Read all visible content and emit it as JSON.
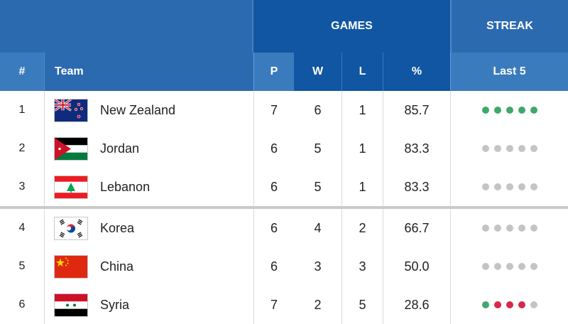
{
  "header": {
    "games": "GAMES",
    "streak": "STREAK",
    "rank": "#",
    "team": "Team",
    "p": "P",
    "w": "W",
    "l": "L",
    "pct": "%",
    "last5": "Last 5"
  },
  "colors": {
    "win": "#3fa86a",
    "loss": "#d8284a",
    "none": "#c4c4c4",
    "header_dark": "#1056a2",
    "header_light": "#3a7bbd"
  },
  "rows": [
    {
      "rank": "1",
      "team": "New Zealand",
      "flag": "new-zealand-flag",
      "p": "7",
      "w": "6",
      "l": "1",
      "pct": "85.7",
      "last5": [
        "W",
        "W",
        "W",
        "W",
        "W"
      ]
    },
    {
      "rank": "2",
      "team": "Jordan",
      "flag": "jordan-flag",
      "p": "6",
      "w": "5",
      "l": "1",
      "pct": "83.3",
      "last5": [
        "-",
        "-",
        "-",
        "-",
        "-"
      ]
    },
    {
      "rank": "3",
      "team": "Lebanon",
      "flag": "lebanon-flag",
      "p": "6",
      "w": "5",
      "l": "1",
      "pct": "83.3",
      "last5": [
        "-",
        "-",
        "-",
        "-",
        "-"
      ]
    },
    {
      "rank": "4",
      "team": "Korea",
      "flag": "korea-flag",
      "p": "6",
      "w": "4",
      "l": "2",
      "pct": "66.7",
      "last5": [
        "-",
        "-",
        "-",
        "-",
        "-"
      ]
    },
    {
      "rank": "5",
      "team": "China",
      "flag": "china-flag",
      "p": "6",
      "w": "3",
      "l": "3",
      "pct": "50.0",
      "last5": [
        "-",
        "-",
        "-",
        "-",
        "-"
      ]
    },
    {
      "rank": "6",
      "team": "Syria",
      "flag": "syria-flag",
      "p": "7",
      "w": "2",
      "l": "5",
      "pct": "28.6",
      "last5": [
        "W",
        "L",
        "L",
        "L",
        "-"
      ]
    }
  ]
}
